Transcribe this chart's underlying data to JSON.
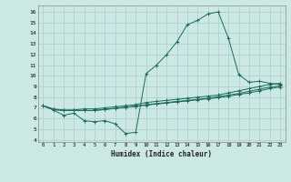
{
  "xlabel": "Humidex (Indice chaleur)",
  "ylabel": "",
  "bg_color": "#cce8e4",
  "grid_color": "#aacfcb",
  "line_color": "#1a6b5a",
  "xlim": [
    -0.5,
    23.5
  ],
  "ylim": [
    3.8,
    16.6
  ],
  "xticks": [
    0,
    1,
    2,
    3,
    4,
    5,
    6,
    7,
    8,
    9,
    10,
    11,
    12,
    13,
    14,
    15,
    16,
    17,
    18,
    19,
    20,
    21,
    22,
    23
  ],
  "yticks": [
    4,
    5,
    6,
    7,
    8,
    9,
    10,
    11,
    12,
    13,
    14,
    15,
    16
  ],
  "line1_x": [
    0,
    1,
    2,
    3,
    4,
    5,
    6,
    7,
    8,
    9,
    10,
    11,
    12,
    13,
    14,
    15,
    16,
    17,
    18,
    19,
    20,
    21,
    22,
    23
  ],
  "line1_y": [
    7.2,
    6.8,
    6.3,
    6.5,
    5.8,
    5.7,
    5.8,
    5.5,
    4.6,
    4.7,
    10.2,
    11.0,
    12.0,
    13.2,
    14.8,
    15.2,
    15.8,
    16.0,
    13.5,
    10.1,
    9.4,
    9.5,
    9.3,
    9.2
  ],
  "line2_x": [
    0,
    1,
    2,
    3,
    4,
    5,
    6,
    7,
    8,
    9,
    10,
    11,
    12,
    13,
    14,
    15,
    16,
    17,
    18,
    19,
    20,
    21,
    22,
    23
  ],
  "line2_y": [
    7.2,
    6.9,
    6.8,
    6.8,
    6.9,
    6.9,
    7.0,
    7.1,
    7.2,
    7.3,
    7.5,
    7.6,
    7.7,
    7.8,
    7.9,
    8.0,
    8.1,
    8.2,
    8.4,
    8.6,
    8.8,
    9.0,
    9.2,
    9.3
  ],
  "line3_x": [
    0,
    1,
    2,
    3,
    4,
    5,
    6,
    7,
    8,
    9,
    10,
    11,
    12,
    13,
    14,
    15,
    16,
    17,
    18,
    19,
    20,
    21,
    22,
    23
  ],
  "line3_y": [
    7.2,
    6.85,
    6.75,
    6.75,
    6.75,
    6.75,
    6.85,
    6.95,
    7.05,
    7.15,
    7.25,
    7.35,
    7.45,
    7.55,
    7.65,
    7.75,
    7.85,
    7.95,
    8.1,
    8.25,
    8.4,
    8.6,
    8.8,
    8.95
  ],
  "line4_x": [
    0,
    1,
    2,
    3,
    4,
    5,
    6,
    7,
    8,
    9,
    10,
    11,
    12,
    13,
    14,
    15,
    16,
    17,
    18,
    19,
    20,
    21,
    22,
    23
  ],
  "line4_y": [
    7.2,
    6.85,
    6.75,
    6.75,
    6.75,
    6.75,
    6.85,
    6.95,
    7.05,
    7.15,
    7.3,
    7.4,
    7.5,
    7.6,
    7.7,
    7.8,
    7.9,
    8.05,
    8.2,
    8.35,
    8.55,
    8.75,
    8.95,
    9.05
  ]
}
